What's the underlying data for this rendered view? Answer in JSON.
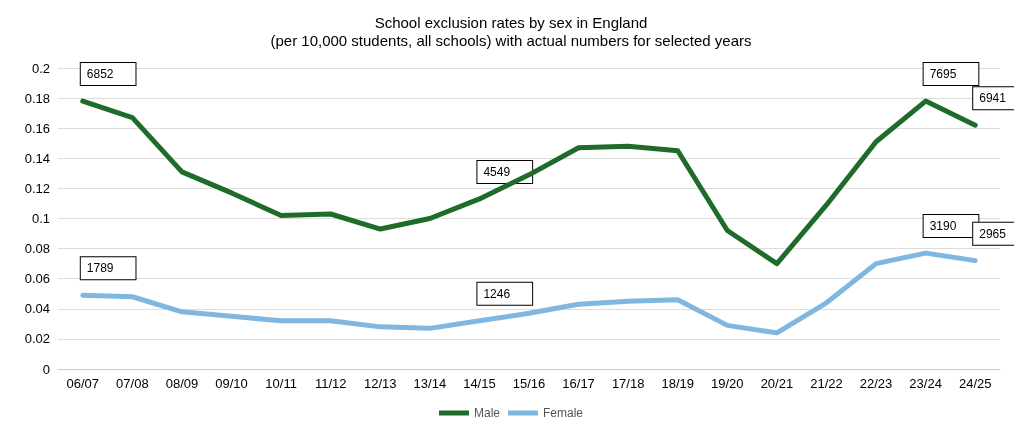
{
  "chart_data": {
    "type": "line",
    "title": "School exclusion rates by sex in England",
    "subtitle": "(per 10,000 students, all schools) with actual numbers for selected years",
    "categories": [
      "06/07",
      "07/08",
      "08/09",
      "09/10",
      "10/11",
      "11/12",
      "12/13",
      "13/14",
      "14/15",
      "15/16",
      "16/17",
      "17/18",
      "18/19",
      "19/20",
      "20/21",
      "21/22",
      "22/23",
      "23/24",
      "24/25"
    ],
    "series": [
      {
        "name": "Male",
        "color": "#1e6b2a",
        "values": [
          0.178,
          0.167,
          0.131,
          0.117,
          0.102,
          0.103,
          0.093,
          0.1,
          0.113,
          0.129,
          0.147,
          0.148,
          0.145,
          0.092,
          0.07,
          0.109,
          0.151,
          0.178,
          0.162
        ]
      },
      {
        "name": "Female",
        "color": "#7fb7e0",
        "values": [
          0.049,
          0.048,
          0.038,
          0.035,
          0.032,
          0.032,
          0.028,
          0.027,
          0.032,
          0.037,
          0.043,
          0.045,
          0.046,
          0.029,
          0.024,
          0.044,
          0.07,
          0.077,
          0.072
        ]
      }
    ],
    "ylim": [
      0,
      0.2
    ],
    "yticks": [
      0,
      0.02,
      0.04,
      0.06,
      0.08,
      0.1,
      0.12,
      0.14,
      0.16,
      0.18,
      0.2
    ],
    "annotations": [
      {
        "text": "6852",
        "x": "06/07",
        "y": 0.178
      },
      {
        "text": "4549",
        "x": "14/15",
        "y": 0.113
      },
      {
        "text": "7695",
        "x": "23/24",
        "y": 0.178
      },
      {
        "text": "6941",
        "x": "24/25",
        "y": 0.162
      },
      {
        "text": "1789",
        "x": "06/07",
        "y": 0.049
      },
      {
        "text": "1246",
        "x": "14/15",
        "y": 0.032
      },
      {
        "text": "3190",
        "x": "23/24",
        "y": 0.077
      },
      {
        "text": "2965",
        "x": "24/25",
        "y": 0.072
      }
    ],
    "grid": "y",
    "legend": "bottom",
    "marker": "none",
    "line_style": "solid"
  }
}
